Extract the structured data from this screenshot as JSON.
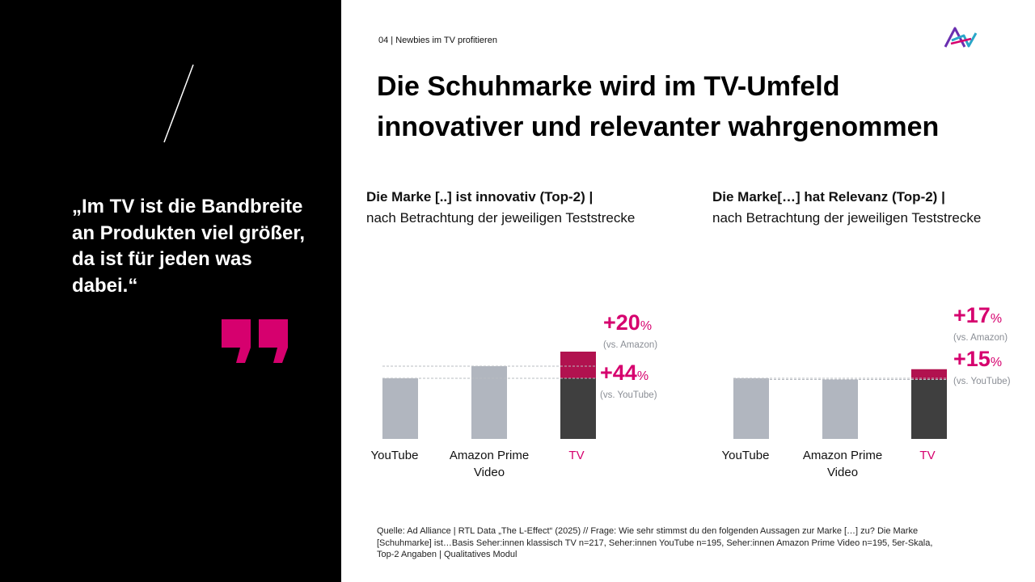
{
  "quote": {
    "text": "„Im TV ist die Bandbreite an Produkten viel größer, da ist für jeden was dabei.“"
  },
  "section_label": "04 | Newbies im TV profitieren",
  "title_lines": [
    "Die Schuhmarke wird im TV-Umfeld",
    "innovativer und relevanter wahrgenommen"
  ],
  "colors": {
    "accent": "#d6006e",
    "bar_grey": "#b1b6bf",
    "bar_tv_base": "#3f3f3f",
    "tv_increment": "#b1124f",
    "logo_violet": "#6a2fb0",
    "logo_teal": "#2aa6c8"
  },
  "chart_data": [
    {
      "type": "bar",
      "title": "Die Marke [..] ist innovativ (Top-2) |",
      "subtitle": "nach Betrachtung der jeweiligen Teststrecke",
      "categories": [
        "YouTube",
        "Amazon Prime Video",
        "TV"
      ],
      "category_lines": [
        [
          "YouTube"
        ],
        [
          "Amazon Prime",
          "Video"
        ],
        [
          "TV"
        ]
      ],
      "values": [
        100,
        120,
        144
      ],
      "tv_increment_baseline": 100,
      "reference_lines": [
        100,
        120
      ],
      "ylim": [
        0,
        150
      ],
      "annotations": [
        {
          "value": "+20",
          "unit": "%",
          "note": "(vs. Amazon)"
        },
        {
          "value": "+44",
          "unit": "%",
          "note": "(vs. YouTube)"
        }
      ]
    },
    {
      "type": "bar",
      "title": "Die Marke[…] hat Relevanz (Top-2) |",
      "subtitle": "nach Betrachtung der jeweiligen Teststrecke",
      "categories": [
        "YouTube",
        "Amazon Prime Video",
        "TV"
      ],
      "category_lines": [
        [
          "YouTube"
        ],
        [
          "Amazon Prime",
          "Video"
        ],
        [
          "TV"
        ]
      ],
      "values": [
        100,
        98,
        115
      ],
      "tv_increment_baseline": 98,
      "reference_lines": [
        100,
        98
      ],
      "ylim": [
        0,
        150
      ],
      "annotations": [
        {
          "value": "+17",
          "unit": "%",
          "note": "(vs. Amazon)"
        },
        {
          "value": "+15",
          "unit": "%",
          "note": "(vs. YouTube)"
        }
      ]
    }
  ],
  "source_text": "Quelle: Ad Alliance | RTL Data „The L-Effect“ (2025) // Frage: Wie sehr stimmst du den folgenden Aussagen zur Marke […] zu? Die Marke [Schuhmarke] ist…Basis Seher:innen klassisch TV n=217, Seher:innen YouTube n=195, Seher:innen Amazon Prime Video n=195, 5er-Skala, Top-2 Angaben | Qualitatives Modul"
}
